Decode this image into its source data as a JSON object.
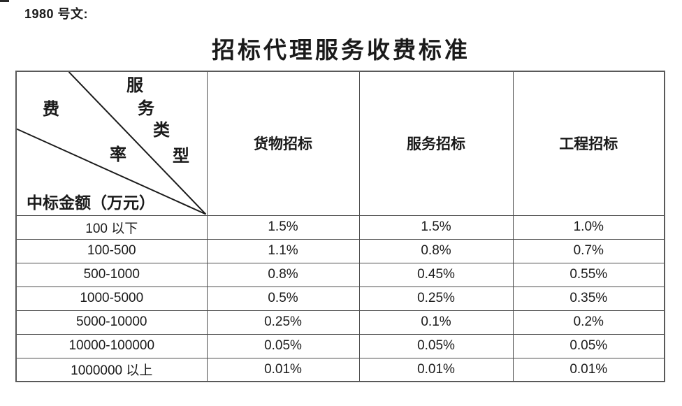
{
  "header": {
    "doc_number": "1980 号文:",
    "title": "招标代理服务收费标准"
  },
  "table": {
    "diagonal": {
      "service_type_chars": [
        "服",
        "务",
        "类",
        "型"
      ],
      "fee_rate_chars": [
        "费",
        "率"
      ],
      "row_axis_label": "中标金额（万元）"
    },
    "columns": [
      "货物招标",
      "服务招标",
      "工程招标"
    ],
    "rows": [
      {
        "range": "100 以下",
        "values": [
          "1.5%",
          "1.5%",
          "1.0%"
        ]
      },
      {
        "range": "100-500",
        "values": [
          "1.1%",
          "0.8%",
          "0.7%"
        ]
      },
      {
        "range": "500-1000",
        "values": [
          "0.8%",
          "0.45%",
          "0.55%"
        ]
      },
      {
        "range": "1000-5000",
        "values": [
          "0.5%",
          "0.25%",
          "0.35%"
        ]
      },
      {
        "range": "5000-10000",
        "values": [
          "0.25%",
          "0.1%",
          "0.2%"
        ]
      },
      {
        "range": "10000-100000",
        "values": [
          "0.05%",
          "0.05%",
          "0.05%"
        ]
      },
      {
        "range": "1000000 以上",
        "values": [
          "0.01%",
          "0.01%",
          "0.01%"
        ]
      }
    ]
  },
  "colors": {
    "text": "#1a1a1a",
    "cell_border": "#4d4d4d",
    "outer_border": "#595959",
    "background": "#ffffff"
  }
}
